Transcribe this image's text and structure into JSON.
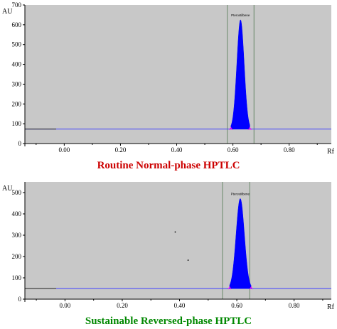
{
  "colors": {
    "plot_bg": "#c8c8c8",
    "peak_fill": "#0000ff",
    "baseline": "#4040ff",
    "window_line": "#6a8a6a",
    "marker": "#ff00ff",
    "caption_top": "#cc0000",
    "caption_bottom": "#008800"
  },
  "chart_data": [
    {
      "type": "area",
      "title": "Routine Normal-phase HPTLC",
      "xlabel": "Rf",
      "ylabel": "AU",
      "xlim": [
        -0.14,
        0.95
      ],
      "ylim": [
        0,
        700
      ],
      "xticks": [
        "0.00",
        "0.20",
        "0.40",
        "0.60",
        "0.80"
      ],
      "xtick_values": [
        0.0,
        0.2,
        0.4,
        0.6,
        0.8
      ],
      "yticks": [
        "0",
        "100",
        "200",
        "300",
        "400",
        "500",
        "600",
        "700"
      ],
      "ytick_values": [
        0,
        100,
        200,
        300,
        400,
        500,
        600,
        700
      ],
      "baseline": 73,
      "window": [
        0.58,
        0.675
      ],
      "peaks": [
        {
          "label": "Pterostilbene",
          "rf": 0.627,
          "height": 625,
          "start": 0.593,
          "end": 0.66
        }
      ],
      "specks": []
    },
    {
      "type": "area",
      "title": "Sustainable Reversed-phase HPTLC",
      "xlabel": "Rf",
      "ylabel": "AU",
      "xlim": [
        -0.14,
        0.93
      ],
      "ylim": [
        0,
        550
      ],
      "xticks": [
        "0.00",
        "0.20",
        "0.40",
        "0.60",
        "0.80"
      ],
      "xtick_values": [
        0.0,
        0.2,
        0.4,
        0.6,
        0.8
      ],
      "yticks": [
        "0",
        "100",
        "200",
        "300",
        "400",
        "500"
      ],
      "ytick_values": [
        0,
        100,
        200,
        300,
        400,
        500
      ],
      "baseline": 50,
      "window": [
        0.55,
        0.645
      ],
      "peaks": [
        {
          "label": "Pterostilbene",
          "rf": 0.612,
          "height": 472,
          "start": 0.575,
          "end": 0.65
        }
      ],
      "specks": [
        {
          "rf": 0.385,
          "au": 315
        },
        {
          "rf": 0.43,
          "au": 183
        }
      ]
    }
  ]
}
